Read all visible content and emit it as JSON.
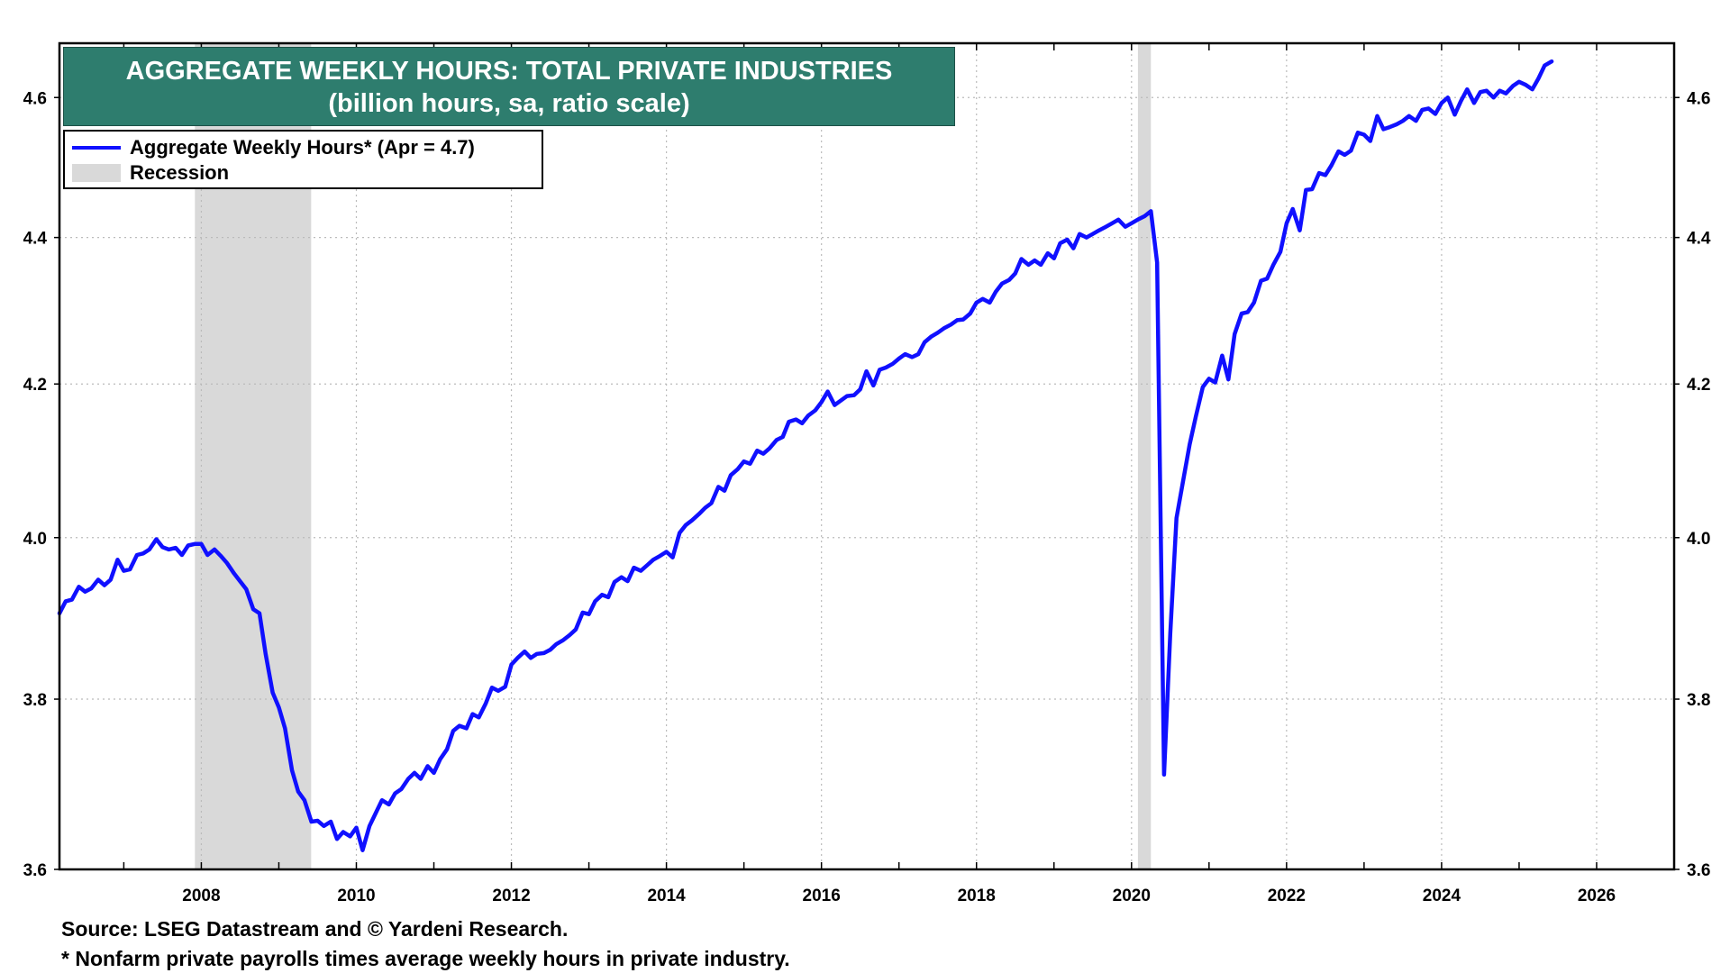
{
  "chart_data": {
    "type": "line",
    "title": "AGGREGATE WEEKLY HOURS: TOTAL PRIVATE INDUSTRIES",
    "subtitle": "(billion hours, sa, ratio scale)",
    "y_scale": "log",
    "ylim": [
      3.6,
      4.68
    ],
    "xlim": [
      2006.17,
      2027.0
    ],
    "x_ticks": [
      "2008",
      "2010",
      "2012",
      "2014",
      "2016",
      "2018",
      "2020",
      "2022",
      "2024",
      "2026"
    ],
    "y_ticks": [
      "3.6",
      "3.8",
      "4.0",
      "4.2",
      "4.4",
      "4.6"
    ],
    "grid": true,
    "legend_position": "top-left",
    "legend": [
      {
        "label": "Aggregate Weekly Hours* (Apr = 4.7)",
        "type": "line",
        "color": "#1010ff"
      },
      {
        "label": "Recession",
        "type": "band",
        "color": "#d9d9d9"
      }
    ],
    "recessions": [
      {
        "start": 2007.917,
        "end": 2009.417
      },
      {
        "start": 2020.083,
        "end": 2020.25
      }
    ],
    "series": [
      {
        "name": "Aggregate Weekly Hours",
        "color": "#1010ff",
        "points": [
          [
            2006.17,
            3.905
          ],
          [
            2006.25,
            3.92
          ],
          [
            2006.33,
            3.922
          ],
          [
            2006.42,
            3.938
          ],
          [
            2006.5,
            3.932
          ],
          [
            2006.58,
            3.936
          ],
          [
            2006.67,
            3.947
          ],
          [
            2006.75,
            3.94
          ],
          [
            2006.83,
            3.947
          ],
          [
            2006.92,
            3.972
          ],
          [
            2007.0,
            3.958
          ],
          [
            2007.08,
            3.96
          ],
          [
            2007.17,
            3.978
          ],
          [
            2007.25,
            3.98
          ],
          [
            2007.33,
            3.985
          ],
          [
            2007.42,
            3.998
          ],
          [
            2007.5,
            3.988
          ],
          [
            2007.58,
            3.985
          ],
          [
            2007.67,
            3.987
          ],
          [
            2007.75,
            3.978
          ],
          [
            2007.83,
            3.99
          ],
          [
            2007.92,
            3.992
          ],
          [
            2008.0,
            3.992
          ],
          [
            2008.08,
            3.978
          ],
          [
            2008.17,
            3.985
          ],
          [
            2008.25,
            3.977
          ],
          [
            2008.33,
            3.968
          ],
          [
            2008.42,
            3.955
          ],
          [
            2008.5,
            3.945
          ],
          [
            2008.58,
            3.935
          ],
          [
            2008.67,
            3.91
          ],
          [
            2008.75,
            3.905
          ],
          [
            2008.83,
            3.855
          ],
          [
            2008.92,
            3.808
          ],
          [
            2009.0,
            3.79
          ],
          [
            2009.08,
            3.765
          ],
          [
            2009.17,
            3.715
          ],
          [
            2009.25,
            3.69
          ],
          [
            2009.33,
            3.68
          ],
          [
            2009.42,
            3.655
          ],
          [
            2009.5,
            3.656
          ],
          [
            2009.58,
            3.65
          ],
          [
            2009.67,
            3.655
          ],
          [
            2009.75,
            3.635
          ],
          [
            2009.83,
            3.643
          ],
          [
            2009.92,
            3.638
          ],
          [
            2010.0,
            3.648
          ],
          [
            2010.08,
            3.622
          ],
          [
            2010.17,
            3.65
          ],
          [
            2010.25,
            3.665
          ],
          [
            2010.33,
            3.68
          ],
          [
            2010.42,
            3.675
          ],
          [
            2010.5,
            3.688
          ],
          [
            2010.58,
            3.693
          ],
          [
            2010.67,
            3.705
          ],
          [
            2010.75,
            3.712
          ],
          [
            2010.83,
            3.705
          ],
          [
            2010.92,
            3.72
          ],
          [
            2011.0,
            3.712
          ],
          [
            2011.08,
            3.728
          ],
          [
            2011.17,
            3.74
          ],
          [
            2011.25,
            3.762
          ],
          [
            2011.33,
            3.768
          ],
          [
            2011.42,
            3.765
          ],
          [
            2011.5,
            3.782
          ],
          [
            2011.58,
            3.778
          ],
          [
            2011.67,
            3.795
          ],
          [
            2011.75,
            3.814
          ],
          [
            2011.83,
            3.81
          ],
          [
            2011.92,
            3.815
          ],
          [
            2012.0,
            3.842
          ],
          [
            2012.08,
            3.85
          ],
          [
            2012.17,
            3.858
          ],
          [
            2012.25,
            3.85
          ],
          [
            2012.33,
            3.855
          ],
          [
            2012.42,
            3.856
          ],
          [
            2012.5,
            3.86
          ],
          [
            2012.58,
            3.867
          ],
          [
            2012.67,
            3.872
          ],
          [
            2012.75,
            3.878
          ],
          [
            2012.83,
            3.885
          ],
          [
            2012.92,
            3.906
          ],
          [
            2013.0,
            3.904
          ],
          [
            2013.08,
            3.92
          ],
          [
            2013.17,
            3.928
          ],
          [
            2013.25,
            3.925
          ],
          [
            2013.33,
            3.944
          ],
          [
            2013.42,
            3.95
          ],
          [
            2013.5,
            3.945
          ],
          [
            2013.58,
            3.962
          ],
          [
            2013.67,
            3.958
          ],
          [
            2013.75,
            3.965
          ],
          [
            2013.83,
            3.972
          ],
          [
            2013.92,
            3.977
          ],
          [
            2014.0,
            3.982
          ],
          [
            2014.08,
            3.975
          ],
          [
            2014.17,
            4.006
          ],
          [
            2014.25,
            4.016
          ],
          [
            2014.33,
            4.022
          ],
          [
            2014.42,
            4.03
          ],
          [
            2014.5,
            4.038
          ],
          [
            2014.58,
            4.044
          ],
          [
            2014.67,
            4.065
          ],
          [
            2014.75,
            4.06
          ],
          [
            2014.83,
            4.08
          ],
          [
            2014.92,
            4.088
          ],
          [
            2015.0,
            4.098
          ],
          [
            2015.08,
            4.095
          ],
          [
            2015.17,
            4.112
          ],
          [
            2015.25,
            4.108
          ],
          [
            2015.33,
            4.115
          ],
          [
            2015.42,
            4.126
          ],
          [
            2015.5,
            4.13
          ],
          [
            2015.58,
            4.15
          ],
          [
            2015.67,
            4.153
          ],
          [
            2015.75,
            4.148
          ],
          [
            2015.83,
            4.158
          ],
          [
            2015.92,
            4.165
          ],
          [
            2016.0,
            4.176
          ],
          [
            2016.08,
            4.19
          ],
          [
            2016.17,
            4.172
          ],
          [
            2016.25,
            4.178
          ],
          [
            2016.33,
            4.184
          ],
          [
            2016.42,
            4.185
          ],
          [
            2016.5,
            4.193
          ],
          [
            2016.58,
            4.217
          ],
          [
            2016.67,
            4.198
          ],
          [
            2016.75,
            4.219
          ],
          [
            2016.83,
            4.222
          ],
          [
            2016.92,
            4.227
          ],
          [
            2017.0,
            4.234
          ],
          [
            2017.08,
            4.24
          ],
          [
            2017.17,
            4.236
          ],
          [
            2017.25,
            4.24
          ],
          [
            2017.33,
            4.256
          ],
          [
            2017.42,
            4.264
          ],
          [
            2017.5,
            4.269
          ],
          [
            2017.58,
            4.275
          ],
          [
            2017.67,
            4.28
          ],
          [
            2017.75,
            4.286
          ],
          [
            2017.83,
            4.287
          ],
          [
            2017.92,
            4.295
          ],
          [
            2018.0,
            4.31
          ],
          [
            2018.08,
            4.315
          ],
          [
            2018.17,
            4.31
          ],
          [
            2018.25,
            4.325
          ],
          [
            2018.33,
            4.336
          ],
          [
            2018.42,
            4.341
          ],
          [
            2018.5,
            4.35
          ],
          [
            2018.58,
            4.37
          ],
          [
            2018.67,
            4.362
          ],
          [
            2018.75,
            4.368
          ],
          [
            2018.83,
            4.362
          ],
          [
            2018.92,
            4.378
          ],
          [
            2019.0,
            4.371
          ],
          [
            2019.08,
            4.392
          ],
          [
            2019.17,
            4.397
          ],
          [
            2019.25,
            4.385
          ],
          [
            2019.33,
            4.405
          ],
          [
            2019.42,
            4.4
          ],
          [
            2019.5,
            4.405
          ],
          [
            2019.58,
            4.41
          ],
          [
            2019.67,
            4.415
          ],
          [
            2019.75,
            4.42
          ],
          [
            2019.83,
            4.425
          ],
          [
            2019.92,
            4.415
          ],
          [
            2020.0,
            4.42
          ],
          [
            2020.08,
            4.425
          ],
          [
            2020.17,
            4.43
          ],
          [
            2020.25,
            4.437
          ],
          [
            2020.33,
            4.365
          ],
          [
            2020.42,
            3.71
          ],
          [
            2020.5,
            3.88
          ],
          [
            2020.58,
            4.025
          ],
          [
            2020.67,
            4.075
          ],
          [
            2020.75,
            4.12
          ],
          [
            2020.83,
            4.157
          ],
          [
            2020.92,
            4.196
          ],
          [
            2021.0,
            4.207
          ],
          [
            2021.08,
            4.202
          ],
          [
            2021.17,
            4.238
          ],
          [
            2021.25,
            4.206
          ],
          [
            2021.33,
            4.267
          ],
          [
            2021.42,
            4.295
          ],
          [
            2021.5,
            4.297
          ],
          [
            2021.58,
            4.31
          ],
          [
            2021.67,
            4.34
          ],
          [
            2021.75,
            4.343
          ],
          [
            2021.83,
            4.362
          ],
          [
            2021.92,
            4.38
          ],
          [
            2022.0,
            4.42
          ],
          [
            2022.08,
            4.44
          ],
          [
            2022.17,
            4.41
          ],
          [
            2022.25,
            4.467
          ],
          [
            2022.33,
            4.468
          ],
          [
            2022.42,
            4.491
          ],
          [
            2022.5,
            4.488
          ],
          [
            2022.58,
            4.502
          ],
          [
            2022.67,
            4.522
          ],
          [
            2022.75,
            4.517
          ],
          [
            2022.83,
            4.523
          ],
          [
            2022.92,
            4.549
          ],
          [
            2023.0,
            4.546
          ],
          [
            2023.08,
            4.537
          ],
          [
            2023.17,
            4.573
          ],
          [
            2023.25,
            4.554
          ],
          [
            2023.33,
            4.557
          ],
          [
            2023.42,
            4.561
          ],
          [
            2023.5,
            4.566
          ],
          [
            2023.58,
            4.573
          ],
          [
            2023.67,
            4.566
          ],
          [
            2023.75,
            4.582
          ],
          [
            2023.83,
            4.584
          ],
          [
            2023.92,
            4.576
          ],
          [
            2024.0,
            4.592
          ],
          [
            2024.08,
            4.6
          ],
          [
            2024.17,
            4.575
          ],
          [
            2024.25,
            4.595
          ],
          [
            2024.33,
            4.612
          ],
          [
            2024.42,
            4.592
          ],
          [
            2024.5,
            4.608
          ],
          [
            2024.58,
            4.61
          ],
          [
            2024.67,
            4.6
          ],
          [
            2024.75,
            4.61
          ],
          [
            2024.83,
            4.606
          ],
          [
            2024.92,
            4.617
          ],
          [
            2025.0,
            4.623
          ],
          [
            2025.08,
            4.619
          ],
          [
            2025.17,
            4.612
          ],
          [
            2025.25,
            4.628
          ],
          [
            2025.33,
            4.647
          ],
          [
            2025.42,
            4.653
          ]
        ]
      }
    ]
  },
  "footer": {
    "source": "Source: LSEG Datastream and © Yardeni Research.",
    "note": "* Nonfarm private payrolls times average weekly hours in private industry."
  }
}
